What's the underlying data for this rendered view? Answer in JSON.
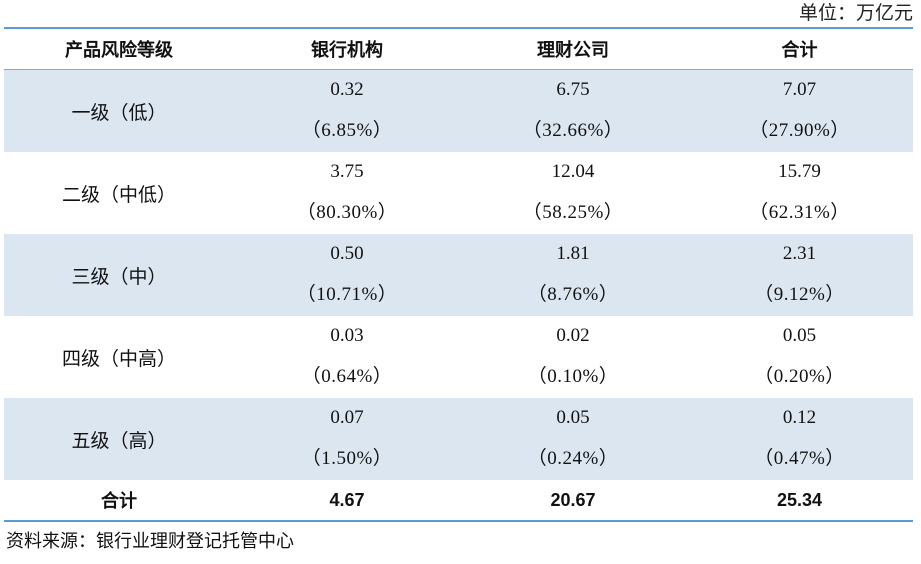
{
  "unit_label": "单位：万亿元",
  "columns": [
    "产品风险等级",
    "银行机构",
    "理财公司",
    "合计"
  ],
  "rows": [
    {
      "label": "一级（低）",
      "cells": [
        {
          "value": "0.32",
          "pct": "（6.85%）"
        },
        {
          "value": "6.75",
          "pct": "（32.66%）"
        },
        {
          "value": "7.07",
          "pct": "（27.90%）"
        }
      ]
    },
    {
      "label": "二级（中低）",
      "cells": [
        {
          "value": "3.75",
          "pct": "（80.30%）"
        },
        {
          "value": "12.04",
          "pct": "（58.25%）"
        },
        {
          "value": "15.79",
          "pct": "（62.31%）"
        }
      ]
    },
    {
      "label": "三级（中）",
      "cells": [
        {
          "value": "0.50",
          "pct": "（10.71%）"
        },
        {
          "value": "1.81",
          "pct": "（8.76%）"
        },
        {
          "value": "2.31",
          "pct": "（9.12%）"
        }
      ]
    },
    {
      "label": "四级（中高）",
      "cells": [
        {
          "value": "0.03",
          "pct": "（0.64%）"
        },
        {
          "value": "0.02",
          "pct": "（0.10%）"
        },
        {
          "value": "0.05",
          "pct": "（0.20%）"
        }
      ]
    },
    {
      "label": "五级（高）",
      "cells": [
        {
          "value": "0.07",
          "pct": "（1.50%）"
        },
        {
          "value": "0.05",
          "pct": "（0.24%）"
        },
        {
          "value": "0.12",
          "pct": "（0.47%）"
        }
      ]
    }
  ],
  "total": {
    "label": "合计",
    "values": [
      "4.67",
      "20.67",
      "25.34"
    ]
  },
  "source": "资料来源：银行业理财登记托管中心",
  "colors": {
    "shade": "#dce6f1",
    "rule": "#5b9bd5"
  }
}
